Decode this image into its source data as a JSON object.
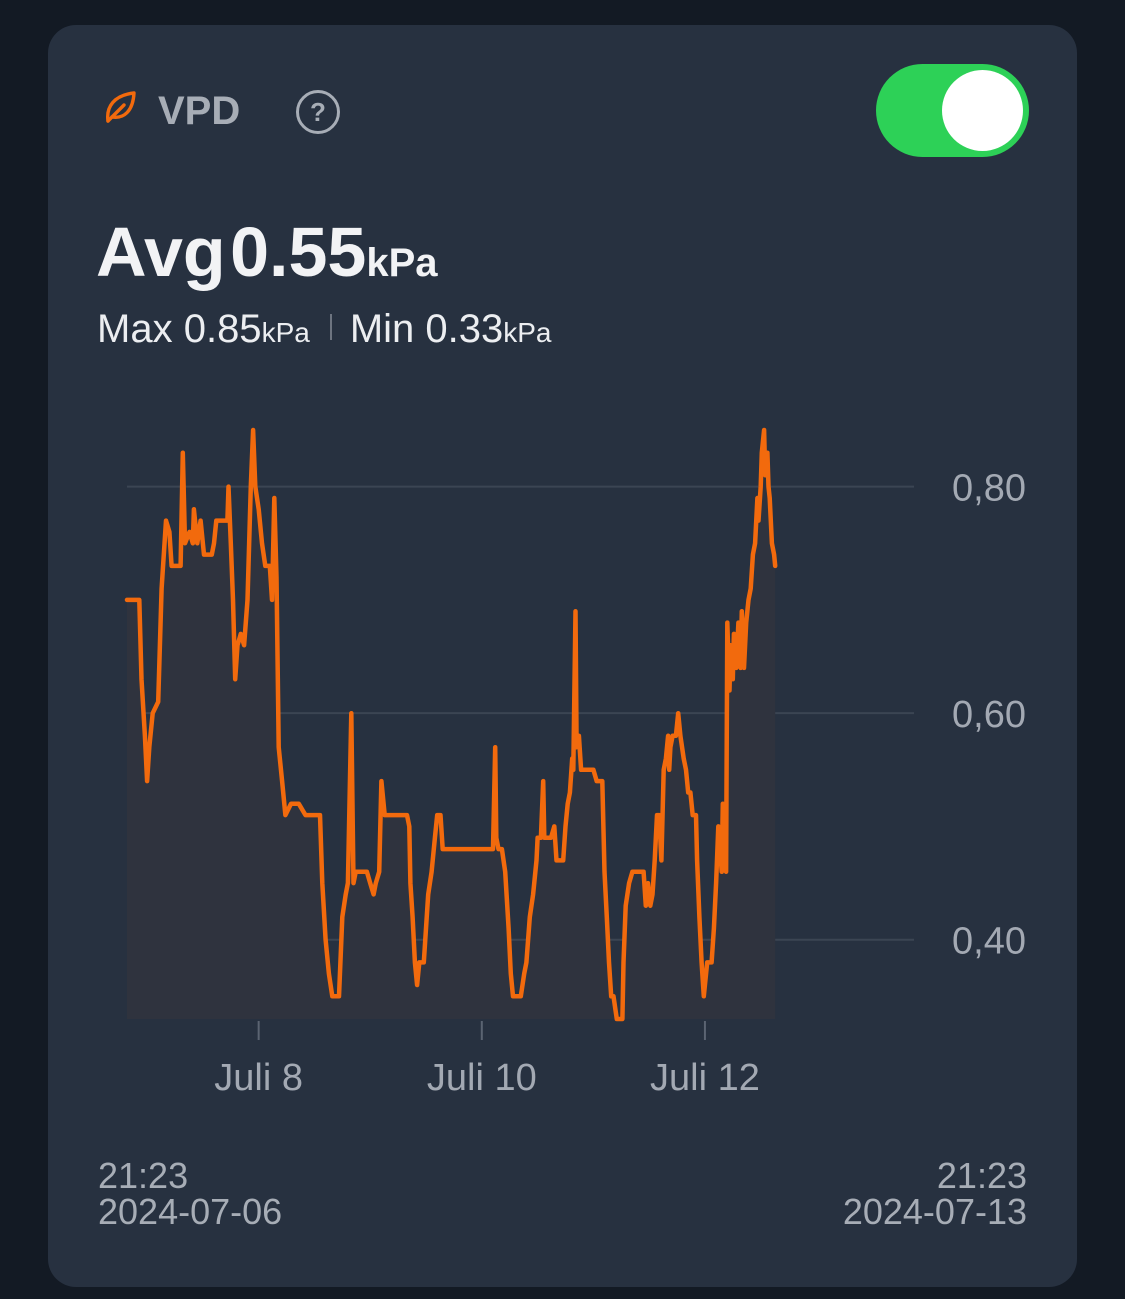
{
  "card": {
    "title": "VPD",
    "help_label": "?",
    "toggle_on": true,
    "accent_color": "#f26a0d",
    "toggle_color": "#2dd157"
  },
  "summary": {
    "avg_label": "Avg",
    "avg_value": "0.55",
    "avg_unit": "kPa",
    "max_label": "Max",
    "max_value": "0.85",
    "max_unit": "kPa",
    "min_label": "Min",
    "min_value": "0.33",
    "min_unit": "kPa"
  },
  "range": {
    "start_time": "21:23",
    "start_date": "2024-07-06",
    "end_time": "21:23",
    "end_date": "2024-07-13"
  },
  "chart_data": {
    "type": "line",
    "series_color": "#f26a0d",
    "y_ticks": [
      {
        "value": 0.8,
        "label": "0,80"
      },
      {
        "value": 0.6,
        "label": "0,60"
      },
      {
        "value": 0.4,
        "label": "0,40"
      }
    ],
    "x_ticks": [
      {
        "day": 8.0,
        "label": "Juli 8"
      },
      {
        "day": 10.0,
        "label": "Juli 10"
      },
      {
        "day": 12.0,
        "label": "Juli 12"
      }
    ],
    "ylim": [
      0.33,
      0.85
    ],
    "xlim": [
      6.82,
      13.82
    ],
    "grid": true,
    "points": [
      [
        6.82,
        0.7
      ],
      [
        6.93,
        0.7
      ],
      [
        6.95,
        0.63
      ],
      [
        6.98,
        0.58
      ],
      [
        7.0,
        0.54
      ],
      [
        7.02,
        0.57
      ],
      [
        7.05,
        0.6
      ],
      [
        7.1,
        0.61
      ],
      [
        7.13,
        0.71
      ],
      [
        7.17,
        0.77
      ],
      [
        7.2,
        0.76
      ],
      [
        7.22,
        0.73
      ],
      [
        7.3,
        0.73
      ],
      [
        7.32,
        0.83
      ],
      [
        7.34,
        0.75
      ],
      [
        7.38,
        0.76
      ],
      [
        7.41,
        0.75
      ],
      [
        7.42,
        0.78
      ],
      [
        7.45,
        0.75
      ],
      [
        7.48,
        0.77
      ],
      [
        7.51,
        0.74
      ],
      [
        7.58,
        0.74
      ],
      [
        7.6,
        0.75
      ],
      [
        7.62,
        0.77
      ],
      [
        7.72,
        0.77
      ],
      [
        7.73,
        0.8
      ],
      [
        7.75,
        0.75
      ],
      [
        7.77,
        0.7
      ],
      [
        7.79,
        0.63
      ],
      [
        7.81,
        0.66
      ],
      [
        7.84,
        0.67
      ],
      [
        7.87,
        0.66
      ],
      [
        7.9,
        0.7
      ],
      [
        7.93,
        0.8
      ],
      [
        7.95,
        0.85
      ],
      [
        7.97,
        0.8
      ],
      [
        8.0,
        0.78
      ],
      [
        8.03,
        0.75
      ],
      [
        8.06,
        0.73
      ],
      [
        8.1,
        0.73
      ],
      [
        8.12,
        0.7
      ],
      [
        8.14,
        0.79
      ],
      [
        8.16,
        0.72
      ],
      [
        8.18,
        0.57
      ],
      [
        8.21,
        0.54
      ],
      [
        8.24,
        0.51
      ],
      [
        8.29,
        0.52
      ],
      [
        8.36,
        0.52
      ],
      [
        8.42,
        0.51
      ],
      [
        8.55,
        0.51
      ],
      [
        8.57,
        0.45
      ],
      [
        8.6,
        0.4
      ],
      [
        8.63,
        0.37
      ],
      [
        8.66,
        0.35
      ],
      [
        8.72,
        0.35
      ],
      [
        8.75,
        0.42
      ],
      [
        8.78,
        0.44
      ],
      [
        8.8,
        0.45
      ],
      [
        8.83,
        0.6
      ],
      [
        8.85,
        0.45
      ],
      [
        8.87,
        0.46
      ],
      [
        8.89,
        0.46
      ],
      [
        8.92,
        0.46
      ],
      [
        8.95,
        0.46
      ],
      [
        8.97,
        0.46
      ],
      [
        9.0,
        0.45
      ],
      [
        9.03,
        0.44
      ],
      [
        9.05,
        0.45
      ],
      [
        9.08,
        0.46
      ],
      [
        9.1,
        0.54
      ],
      [
        9.13,
        0.51
      ],
      [
        9.2,
        0.51
      ],
      [
        9.28,
        0.51
      ],
      [
        9.33,
        0.51
      ],
      [
        9.35,
        0.5
      ],
      [
        9.36,
        0.45
      ],
      [
        9.38,
        0.42
      ],
      [
        9.4,
        0.38
      ],
      [
        9.42,
        0.36
      ],
      [
        9.44,
        0.38
      ],
      [
        9.48,
        0.38
      ],
      [
        9.52,
        0.44
      ],
      [
        9.55,
        0.46
      ],
      [
        9.58,
        0.49
      ],
      [
        9.6,
        0.51
      ],
      [
        9.63,
        0.51
      ],
      [
        9.65,
        0.48
      ],
      [
        9.7,
        0.48
      ],
      [
        9.8,
        0.48
      ],
      [
        9.9,
        0.48
      ],
      [
        9.96,
        0.48
      ],
      [
        10.03,
        0.48
      ],
      [
        10.1,
        0.48
      ],
      [
        10.12,
        0.57
      ],
      [
        10.13,
        0.49
      ],
      [
        10.15,
        0.48
      ],
      [
        10.18,
        0.48
      ],
      [
        10.21,
        0.46
      ],
      [
        10.24,
        0.41
      ],
      [
        10.26,
        0.37
      ],
      [
        10.28,
        0.35
      ],
      [
        10.35,
        0.35
      ],
      [
        10.38,
        0.37
      ],
      [
        10.4,
        0.38
      ],
      [
        10.43,
        0.42
      ],
      [
        10.46,
        0.44
      ],
      [
        10.49,
        0.47
      ],
      [
        10.5,
        0.49
      ],
      [
        10.53,
        0.49
      ],
      [
        10.55,
        0.54
      ],
      [
        10.56,
        0.49
      ],
      [
        10.58,
        0.49
      ],
      [
        10.62,
        0.49
      ],
      [
        10.65,
        0.5
      ],
      [
        10.67,
        0.47
      ],
      [
        10.7,
        0.47
      ],
      [
        10.73,
        0.47
      ],
      [
        10.75,
        0.5
      ],
      [
        10.77,
        0.52
      ],
      [
        10.79,
        0.53
      ],
      [
        10.81,
        0.56
      ],
      [
        10.82,
        0.55
      ],
      [
        10.84,
        0.69
      ],
      [
        10.85,
        0.57
      ],
      [
        10.87,
        0.58
      ],
      [
        10.89,
        0.55
      ],
      [
        10.93,
        0.55
      ],
      [
        11.0,
        0.55
      ],
      [
        11.03,
        0.54
      ],
      [
        11.06,
        0.54
      ],
      [
        11.08,
        0.54
      ],
      [
        11.1,
        0.46
      ],
      [
        11.12,
        0.42
      ],
      [
        11.14,
        0.38
      ],
      [
        11.16,
        0.35
      ],
      [
        11.18,
        0.35
      ],
      [
        11.21,
        0.33
      ],
      [
        11.26,
        0.33
      ],
      [
        11.27,
        0.38
      ],
      [
        11.29,
        0.43
      ],
      [
        11.32,
        0.45
      ],
      [
        11.35,
        0.46
      ],
      [
        11.38,
        0.46
      ],
      [
        11.42,
        0.46
      ],
      [
        11.45,
        0.46
      ],
      [
        11.47,
        0.43
      ],
      [
        11.49,
        0.45
      ],
      [
        11.51,
        0.43
      ],
      [
        11.53,
        0.44
      ],
      [
        11.55,
        0.47
      ],
      [
        11.57,
        0.51
      ],
      [
        11.59,
        0.51
      ],
      [
        11.61,
        0.47
      ],
      [
        11.63,
        0.55
      ],
      [
        11.65,
        0.56
      ],
      [
        11.67,
        0.58
      ],
      [
        11.68,
        0.55
      ],
      [
        11.69,
        0.57
      ],
      [
        11.71,
        0.58
      ],
      [
        11.74,
        0.58
      ],
      [
        11.76,
        0.6
      ],
      [
        11.78,
        0.58
      ],
      [
        11.81,
        0.56
      ],
      [
        11.83,
        0.55
      ],
      [
        11.85,
        0.53
      ],
      [
        11.87,
        0.53
      ],
      [
        11.89,
        0.51
      ],
      [
        11.92,
        0.51
      ],
      [
        11.93,
        0.47
      ],
      [
        11.95,
        0.42
      ],
      [
        11.97,
        0.38
      ],
      [
        11.99,
        0.35
      ],
      [
        12.02,
        0.38
      ],
      [
        12.06,
        0.38
      ],
      [
        12.08,
        0.41
      ],
      [
        12.1,
        0.45
      ],
      [
        12.12,
        0.5
      ],
      [
        12.13,
        0.49
      ],
      [
        12.15,
        0.46
      ],
      [
        12.16,
        0.52
      ],
      [
        12.18,
        0.5
      ],
      [
        12.19,
        0.46
      ],
      [
        12.2,
        0.68
      ],
      [
        12.22,
        0.62
      ],
      [
        12.23,
        0.66
      ],
      [
        12.25,
        0.63
      ],
      [
        12.26,
        0.67
      ],
      [
        12.28,
        0.64
      ],
      [
        12.3,
        0.68
      ],
      [
        12.32,
        0.64
      ],
      [
        12.33,
        0.69
      ],
      [
        12.35,
        0.64
      ],
      [
        12.37,
        0.68
      ],
      [
        12.39,
        0.7
      ],
      [
        12.41,
        0.71
      ],
      [
        12.43,
        0.74
      ],
      [
        12.45,
        0.75
      ],
      [
        12.47,
        0.79
      ],
      [
        12.48,
        0.77
      ],
      [
        12.5,
        0.8
      ],
      [
        12.51,
        0.83
      ],
      [
        12.53,
        0.85
      ],
      [
        12.54,
        0.81
      ],
      [
        12.56,
        0.83
      ],
      [
        12.57,
        0.8
      ],
      [
        12.58,
        0.79
      ],
      [
        12.6,
        0.75
      ],
      [
        12.62,
        0.74
      ],
      [
        12.63,
        0.73
      ]
    ]
  }
}
